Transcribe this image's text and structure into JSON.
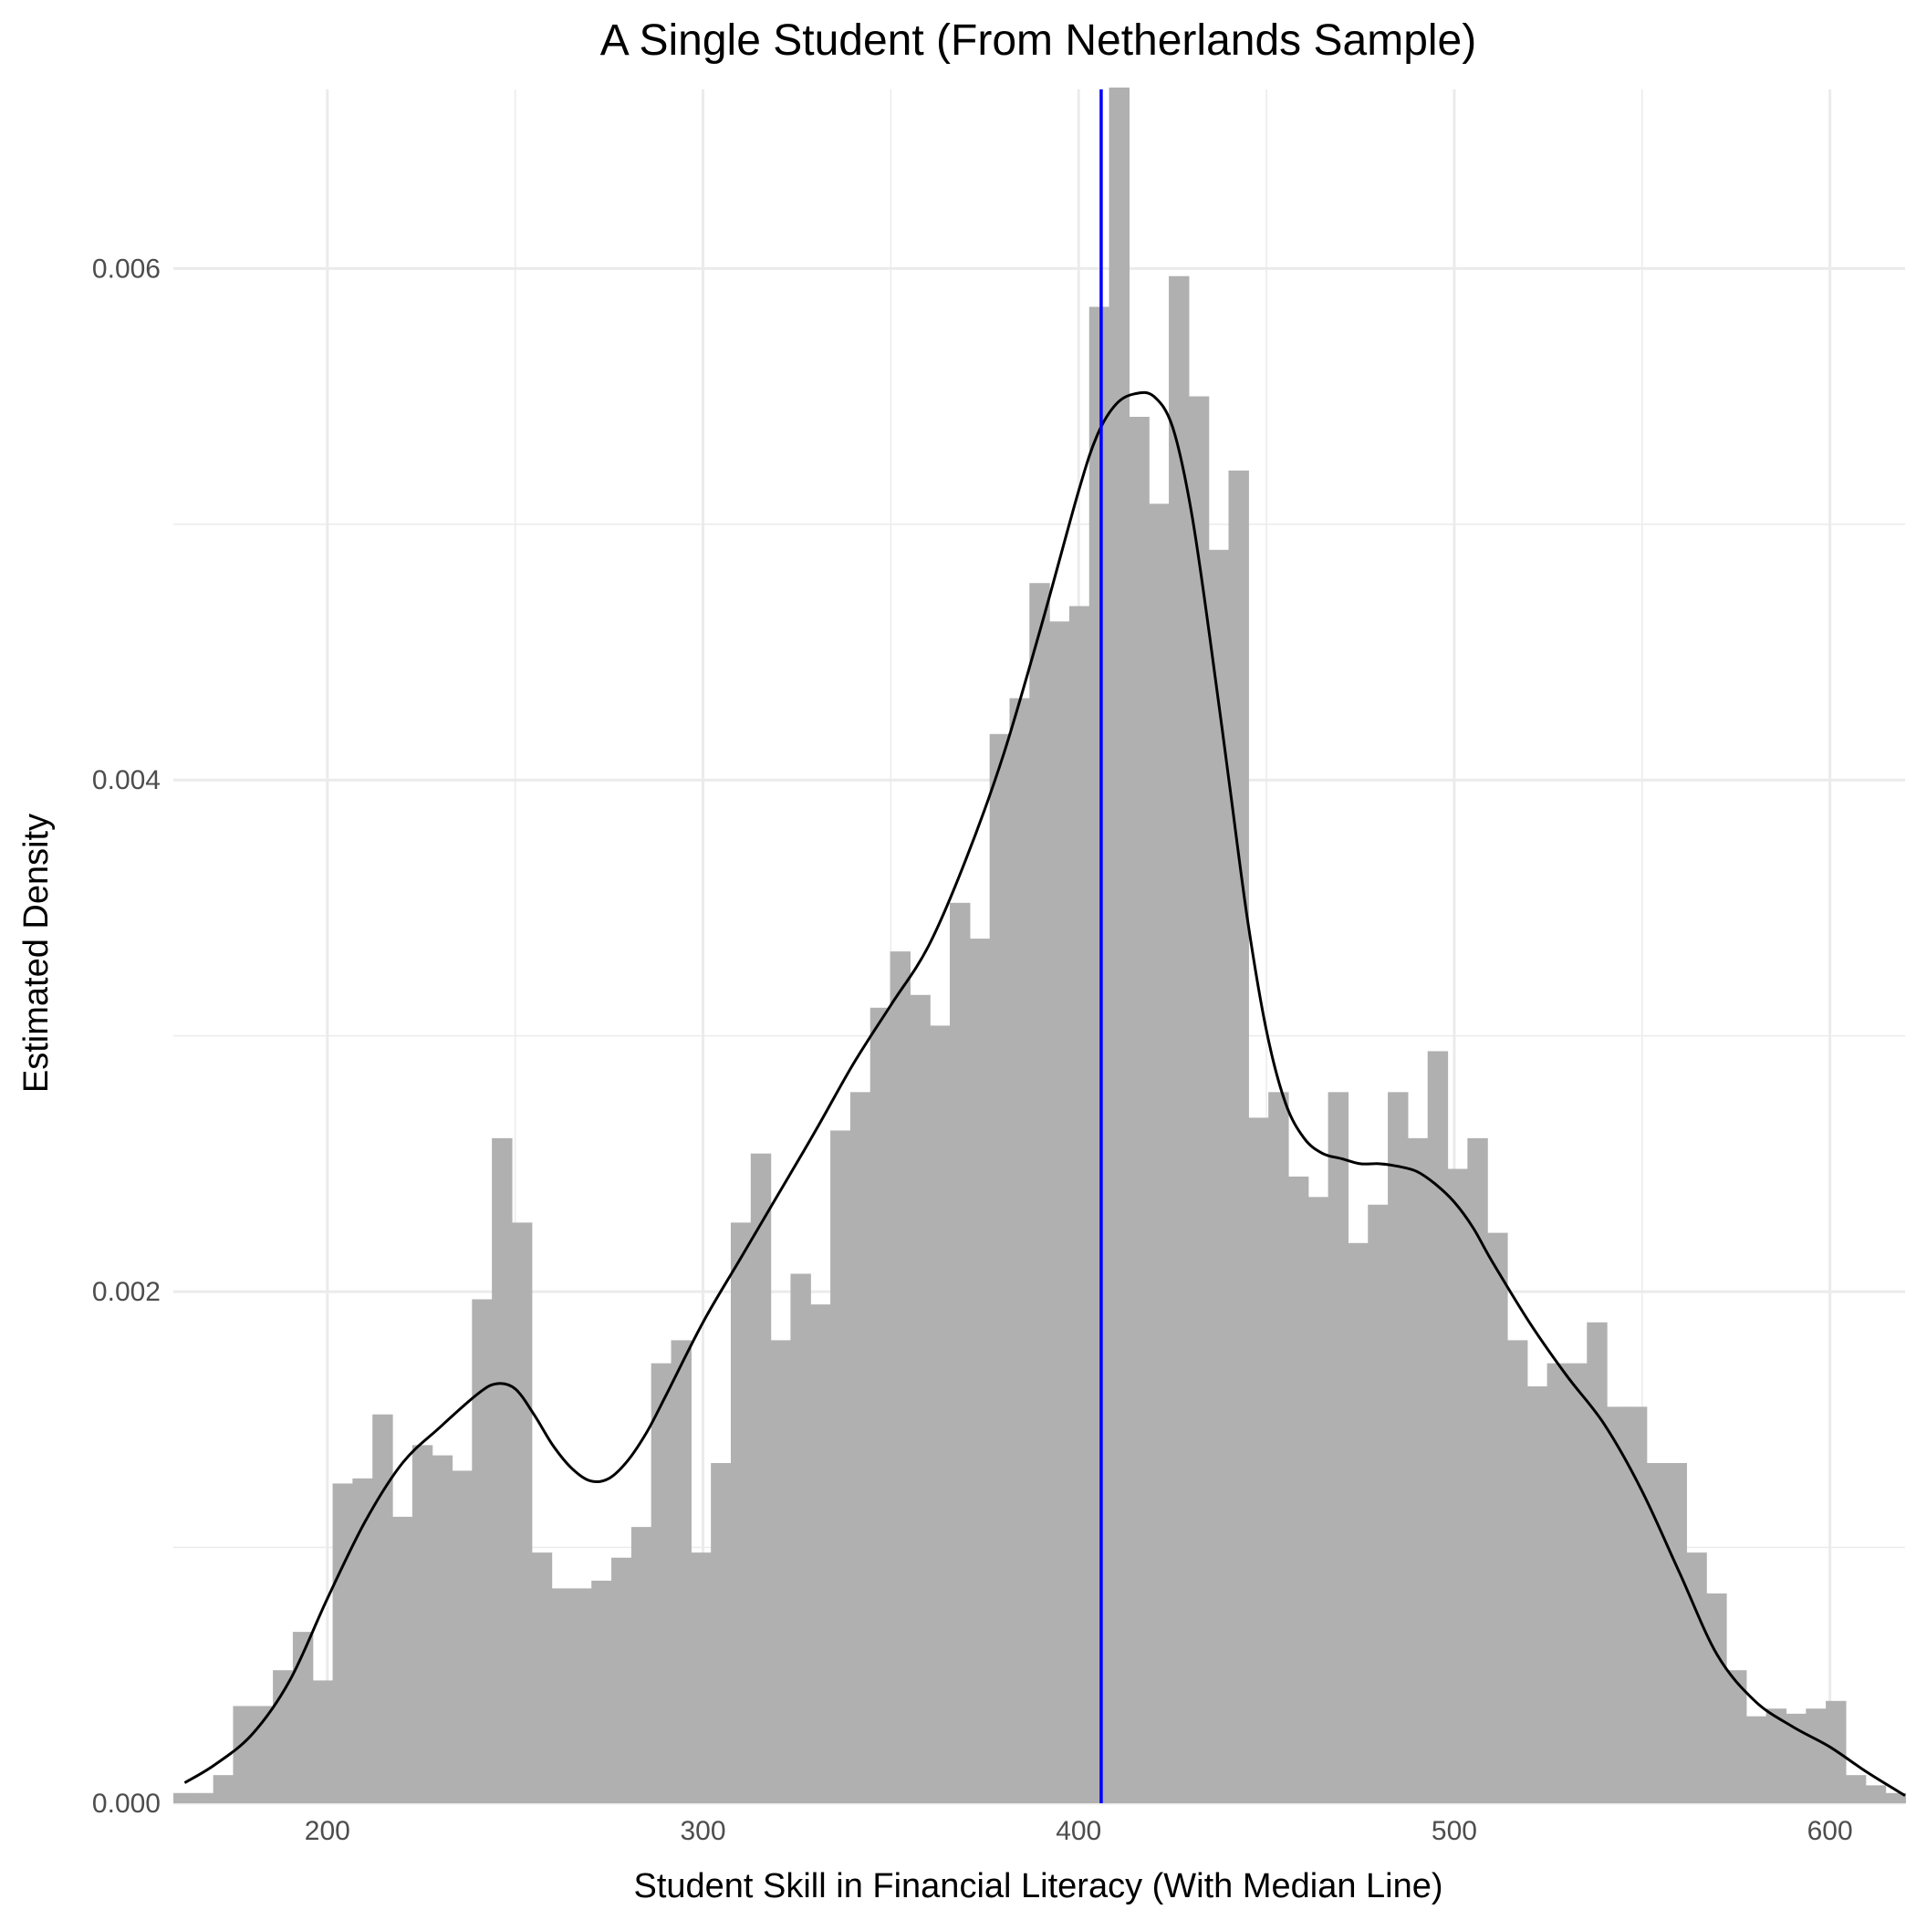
{
  "chart_data": {
    "type": "bar",
    "title": "A Single Student (From Netherlands Sample)",
    "xlabel": "Student Skill in Financial Literacy (With Median Line)",
    "ylabel": "Estimated Density",
    "xlim": [
      159,
      620
    ],
    "ylim": [
      0,
      0.0067
    ],
    "x_ticks": [
      "200",
      "300",
      "400",
      "500",
      "600"
    ],
    "x_tick_values": [
      200,
      300,
      400,
      500,
      600
    ],
    "y_ticks": [
      "0.000",
      "0.002",
      "0.004",
      "0.006"
    ],
    "y_tick_values": [
      0,
      0.002,
      0.004,
      0.006
    ],
    "grid": true,
    "histogram": {
      "bin_width": 5.3,
      "start": 159,
      "values": [
        4e-05,
        4e-05,
        0.00011,
        0.00038,
        0.00038,
        0.00052,
        0.00067,
        0.00048,
        0.00125,
        0.00127,
        0.00152,
        0.00112,
        0.0014,
        0.00136,
        0.0013,
        0.00197,
        0.0026,
        0.00227,
        0.00098,
        0.00084,
        0.00084,
        0.00087,
        0.00096,
        0.00108,
        0.00172,
        0.00181,
        0.00098,
        0.00133,
        0.00227,
        0.00254,
        0.00181,
        0.00207,
        0.00195,
        0.00263,
        0.00278,
        0.00311,
        0.00333,
        0.00316,
        0.00304,
        0.00352,
        0.00338,
        0.00418,
        0.00432,
        0.00477,
        0.00462,
        0.00468,
        0.00585,
        0.00671,
        0.00542,
        0.00508,
        0.00597,
        0.0055,
        0.0049,
        0.00521,
        0.00268,
        0.00278,
        0.00245,
        0.00237,
        0.00278,
        0.00219,
        0.00234,
        0.00278,
        0.0026,
        0.00294,
        0.00248,
        0.0026,
        0.00223,
        0.00181,
        0.00163,
        0.00172,
        0.00172,
        0.00188,
        0.00155,
        0.00155,
        0.00133,
        0.00133,
        0.00098,
        0.00082,
        0.00052,
        0.00034,
        0.00037,
        0.00035,
        0.00037,
        0.0004,
        0.00011,
        7e-05,
        4e-05
      ]
    },
    "density": {
      "x": [
        162,
        170,
        180,
        190,
        200,
        210,
        220,
        230,
        240,
        245,
        250,
        255,
        260,
        265,
        270,
        275,
        280,
        285,
        290,
        300,
        310,
        320,
        330,
        340,
        350,
        360,
        370,
        380,
        390,
        400,
        405,
        410,
        415,
        420,
        425,
        430,
        435,
        440,
        445,
        450,
        455,
        460,
        465,
        470,
        475,
        480,
        485,
        490,
        495,
        500,
        505,
        510,
        520,
        530,
        540,
        550,
        560,
        570,
        580,
        590,
        600,
        610,
        620
      ],
      "y": [
        8e-05,
        0.00015,
        0.00027,
        0.00048,
        0.0008,
        0.0011,
        0.00133,
        0.00147,
        0.0016,
        0.00164,
        0.00162,
        0.00152,
        0.0014,
        0.00131,
        0.00126,
        0.00127,
        0.00134,
        0.00145,
        0.00159,
        0.00188,
        0.00213,
        0.00238,
        0.00263,
        0.00289,
        0.00312,
        0.00335,
        0.00369,
        0.0041,
        0.0046,
        0.00513,
        0.00535,
        0.00547,
        0.00551,
        0.0055,
        0.00538,
        0.00505,
        0.00455,
        0.004,
        0.00345,
        0.00302,
        0.00274,
        0.0026,
        0.00254,
        0.00252,
        0.0025,
        0.0025,
        0.00249,
        0.00247,
        0.00242,
        0.00235,
        0.00225,
        0.00212,
        0.00188,
        0.00167,
        0.00148,
        0.00122,
        0.0009,
        0.00058,
        0.0004,
        0.0003,
        0.00022,
        0.00012,
        3e-05
      ]
    },
    "median": 406,
    "colors": {
      "bars": "#b0b0b0",
      "density": "#000000",
      "median": "#0000ff",
      "grid": "#ebebeb"
    }
  }
}
